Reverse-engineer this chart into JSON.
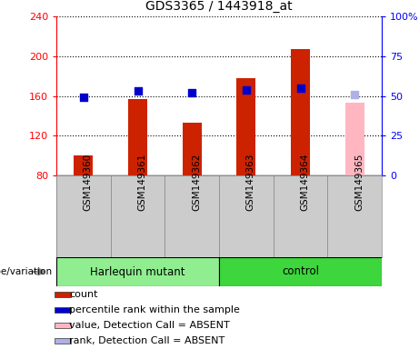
{
  "title": "GDS3365 / 1443918_at",
  "samples": [
    "GSM149360",
    "GSM149361",
    "GSM149362",
    "GSM149363",
    "GSM149364",
    "GSM149365"
  ],
  "count_values": [
    100,
    157,
    133,
    178,
    207,
    null
  ],
  "rank_values": [
    49,
    53,
    52,
    54,
    55,
    null
  ],
  "absent_value": [
    null,
    null,
    null,
    null,
    null,
    153
  ],
  "absent_rank": [
    null,
    null,
    null,
    null,
    null,
    51
  ],
  "count_absent": [
    false,
    false,
    false,
    false,
    false,
    true
  ],
  "ylim_left": [
    80,
    240
  ],
  "ylim_right": [
    0,
    100
  ],
  "yticks_left": [
    80,
    120,
    160,
    200,
    240
  ],
  "yticks_right": [
    0,
    25,
    50,
    75,
    100
  ],
  "yticklabels_right": [
    "0",
    "25",
    "50",
    "75",
    "100%"
  ],
  "bar_bottom": 80,
  "groups": [
    {
      "label": "Harlequin mutant",
      "indices": [
        0,
        1,
        2
      ],
      "color": "#90ee90"
    },
    {
      "label": "control",
      "indices": [
        3,
        4,
        5
      ],
      "color": "#3dd63d"
    }
  ],
  "genotype_label": "genotype/variation",
  "legend_items": [
    {
      "color": "#cc2200",
      "label": "count"
    },
    {
      "color": "#0000cc",
      "label": "percentile rank within the sample"
    },
    {
      "color": "#ffb6c1",
      "label": "value, Detection Call = ABSENT"
    },
    {
      "color": "#b0b0e8",
      "label": "rank, Detection Call = ABSENT"
    }
  ],
  "bar_color_present": "#cc2200",
  "bar_color_absent": "#ffb6c1",
  "dot_color_present": "#0000cc",
  "dot_color_absent": "#b0b0e8",
  "bar_width": 0.35,
  "dot_size": 40,
  "background_color": "#ffffff",
  "plot_bg_color": "#ffffff",
  "tick_label_area_color": "#cccccc",
  "grid_color": "#000000"
}
